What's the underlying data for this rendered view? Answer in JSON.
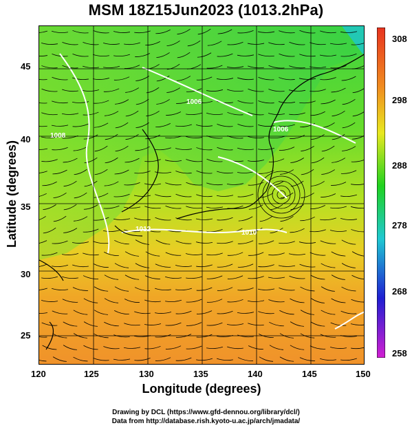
{
  "title": "MSM 18Z15Jun2023 (1013.2hPa)",
  "axes": {
    "xlabel": "Longitude (degrees)",
    "ylabel": "Latitude  (degrees)",
    "xticks": [
      "120",
      "125",
      "130",
      "135",
      "140",
      "145",
      "150"
    ],
    "yticks": [
      "45",
      "40",
      "35",
      "30",
      "25"
    ],
    "xrange": [
      120,
      150
    ],
    "yrange": [
      22.4,
      47.6
    ]
  },
  "colorbar": {
    "ticks": [
      "308",
      "298",
      "288",
      "278",
      "268",
      "258"
    ],
    "range": [
      258,
      308
    ],
    "colors": [
      "#d21fd2",
      "#1f1fd2",
      "#1fc8d2",
      "#1fd21f",
      "#e8e81f",
      "#f08c1f",
      "#e8331f"
    ]
  },
  "contour_labels": [
    "1006",
    "1008",
    "1010",
    "1012"
  ],
  "credits": {
    "line1": "Drawing by DCL (https://www.gfd-dennou.org/library/dcl/)",
    "line2": "Data from http://database.rish.kyoto-u.ac.jp/arch/jmadata/"
  }
}
